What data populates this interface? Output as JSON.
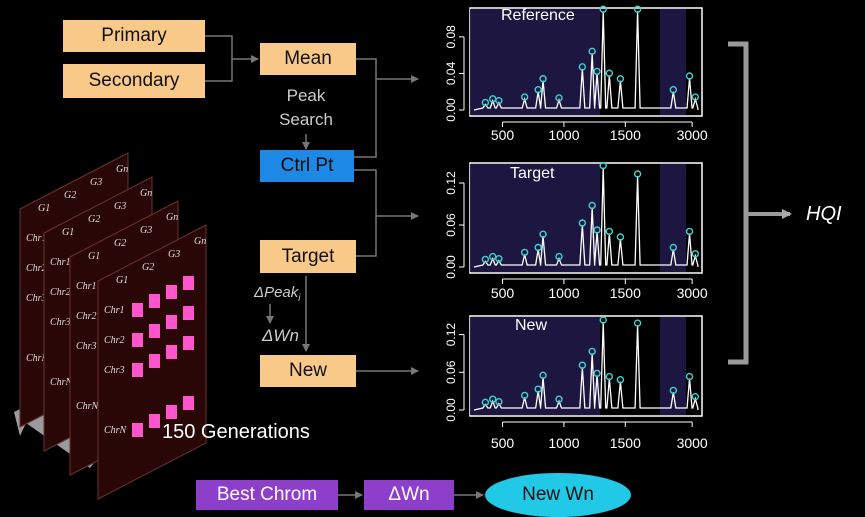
{
  "pipeline": {
    "primary": "Primary",
    "secondary": "Secondary",
    "mean": "Mean",
    "peak_search": "Peak\nSearch",
    "ctrl_pt": "Ctrl Pt",
    "target": "Target",
    "delta_peak": "ΔPeak",
    "delta_peak_sub": "i",
    "delta_wn": "ΔWn",
    "new": "New"
  },
  "chromosomes": {
    "generations_label": "150 Generations",
    "gene_labels": [
      "G1",
      "G2",
      "G3",
      "Gn"
    ],
    "chr_labels": [
      "Chr1",
      "Chr2",
      "Chr3",
      "ChrN"
    ]
  },
  "bottom_flow": {
    "best_chrom": "Best Chrom",
    "delta_wn": "ΔWn",
    "new_wn": "New Wn"
  },
  "hqi_label": "HQI",
  "colors": {
    "peach": "#f9c98a",
    "ctrl_blue": "#1e88e5",
    "purple": "#8e3fc9",
    "cyan_oval": "#22c9e6",
    "pink": "#ff55cc",
    "chrom_bg": "#2a0707",
    "band": "#1c1640"
  },
  "chart_data": [
    {
      "type": "line",
      "title": "Reference",
      "x_ticks": [
        "500",
        "1000",
        "1500",
        "3000"
      ],
      "y_ticks": [
        "0.00",
        "0.04",
        "0.08"
      ],
      "ylim": [
        0,
        0.105
      ],
      "peaks": [
        [
          360,
          0.006
        ],
        [
          420,
          0.01
        ],
        [
          470,
          0.008
        ],
        [
          680,
          0.012
        ],
        [
          790,
          0.02
        ],
        [
          830,
          0.032
        ],
        [
          960,
          0.011
        ],
        [
          1150,
          0.045
        ],
        [
          1230,
          0.062
        ],
        [
          1270,
          0.04
        ],
        [
          1320,
          0.108
        ],
        [
          1370,
          0.038
        ],
        [
          1460,
          0.032
        ],
        [
          1600,
          0.108
        ],
        [
          2640,
          0.02
        ],
        [
          2950,
          0.035
        ],
        [
          3060,
          0.012
        ]
      ],
      "markers": [
        360,
        420,
        470,
        680,
        790,
        830,
        960,
        1150,
        1230,
        1270,
        1320,
        1370,
        1460,
        1600,
        2640,
        2950,
        3060
      ]
    },
    {
      "type": "line",
      "title": "Target",
      "x_ticks": [
        "500",
        "1000",
        "1500",
        "3000"
      ],
      "y_ticks": [
        "0.00",
        "0.06",
        "0.12"
      ],
      "ylim": [
        0,
        0.14
      ],
      "peaks": [
        [
          360,
          0.008
        ],
        [
          420,
          0.012
        ],
        [
          470,
          0.009
        ],
        [
          680,
          0.018
        ],
        [
          790,
          0.025
        ],
        [
          830,
          0.044
        ],
        [
          960,
          0.012
        ],
        [
          1150,
          0.06
        ],
        [
          1230,
          0.085
        ],
        [
          1270,
          0.05
        ],
        [
          1320,
          0.142
        ],
        [
          1370,
          0.048
        ],
        [
          1460,
          0.04
        ],
        [
          1600,
          0.13
        ],
        [
          2640,
          0.025
        ],
        [
          2950,
          0.048
        ],
        [
          3060,
          0.016
        ]
      ],
      "markers": [
        360,
        420,
        470,
        680,
        790,
        830,
        960,
        1150,
        1230,
        1270,
        1320,
        1370,
        1460,
        1600,
        2640,
        2950,
        3060
      ]
    },
    {
      "type": "line",
      "title": "New",
      "x_ticks": [
        "500",
        "1000",
        "1500",
        "3000"
      ],
      "y_ticks": [
        "0.00",
        "0.06",
        "0.12"
      ],
      "ylim": [
        0,
        0.14
      ],
      "peaks": [
        [
          360,
          0.009
        ],
        [
          420,
          0.014
        ],
        [
          470,
          0.01
        ],
        [
          680,
          0.02
        ],
        [
          790,
          0.03
        ],
        [
          830,
          0.052
        ],
        [
          960,
          0.014
        ],
        [
          1150,
          0.068
        ],
        [
          1230,
          0.09
        ],
        [
          1270,
          0.055
        ],
        [
          1320,
          0.14
        ],
        [
          1370,
          0.05
        ],
        [
          1460,
          0.045
        ],
        [
          1600,
          0.135
        ],
        [
          2640,
          0.028
        ],
        [
          2950,
          0.05
        ],
        [
          3060,
          0.018
        ]
      ],
      "markers": [
        360,
        420,
        470,
        680,
        790,
        830,
        960,
        1150,
        1230,
        1270,
        1320,
        1370,
        1460,
        1600,
        2640,
        2950,
        3060
      ]
    }
  ]
}
